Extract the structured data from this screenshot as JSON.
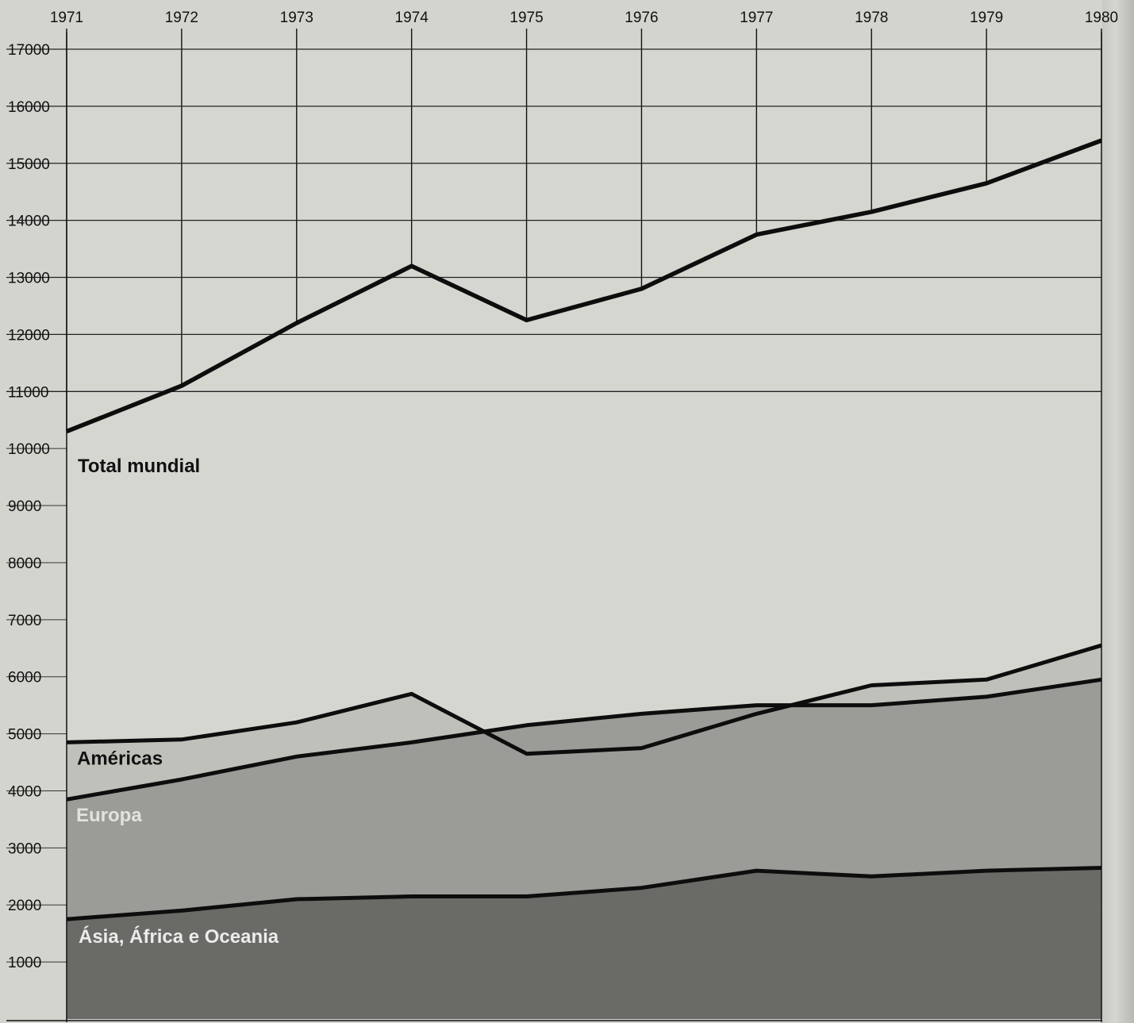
{
  "chart_data": {
    "type": "area",
    "title": "",
    "xlabel": "",
    "ylabel": "",
    "x": [
      "1971",
      "1972",
      "1973",
      "1974",
      "1975",
      "1976",
      "1977",
      "1978",
      "1979",
      "1980"
    ],
    "ylim": [
      0,
      17000
    ],
    "yticks": [
      "17000",
      "16000",
      "15000",
      "14000",
      "13000",
      "12000",
      "11000",
      "10000",
      "9000",
      "8000",
      "7000",
      "6000",
      "5000",
      "4000",
      "3000",
      "2000",
      "1000"
    ],
    "grid": "major lines at 11000–17000 and at each year",
    "series": [
      {
        "name": "Total mundial",
        "kind": "line",
        "color": "#000000",
        "values": [
          10300,
          11100,
          12200,
          13200,
          12250,
          12800,
          13750,
          14150,
          14650,
          15400
        ]
      },
      {
        "name": "Américas",
        "kind": "area-top",
        "fill": "#c0c0bb",
        "values": [
          4850,
          4900,
          5200,
          5700,
          4650,
          4750,
          5350,
          5850,
          5950,
          6550
        ]
      },
      {
        "name": "Europa",
        "kind": "area-top",
        "fill": "#9b9b97",
        "values": [
          3850,
          4200,
          4600,
          4850,
          5150,
          5350,
          5500,
          5500,
          5650,
          5950
        ]
      },
      {
        "name": "Ásia, África e Oceania",
        "kind": "area-top",
        "fill": "#6a6a67",
        "values": [
          1750,
          1900,
          2100,
          2150,
          2150,
          2300,
          2600,
          2500,
          2600,
          2650
        ]
      }
    ]
  }
}
